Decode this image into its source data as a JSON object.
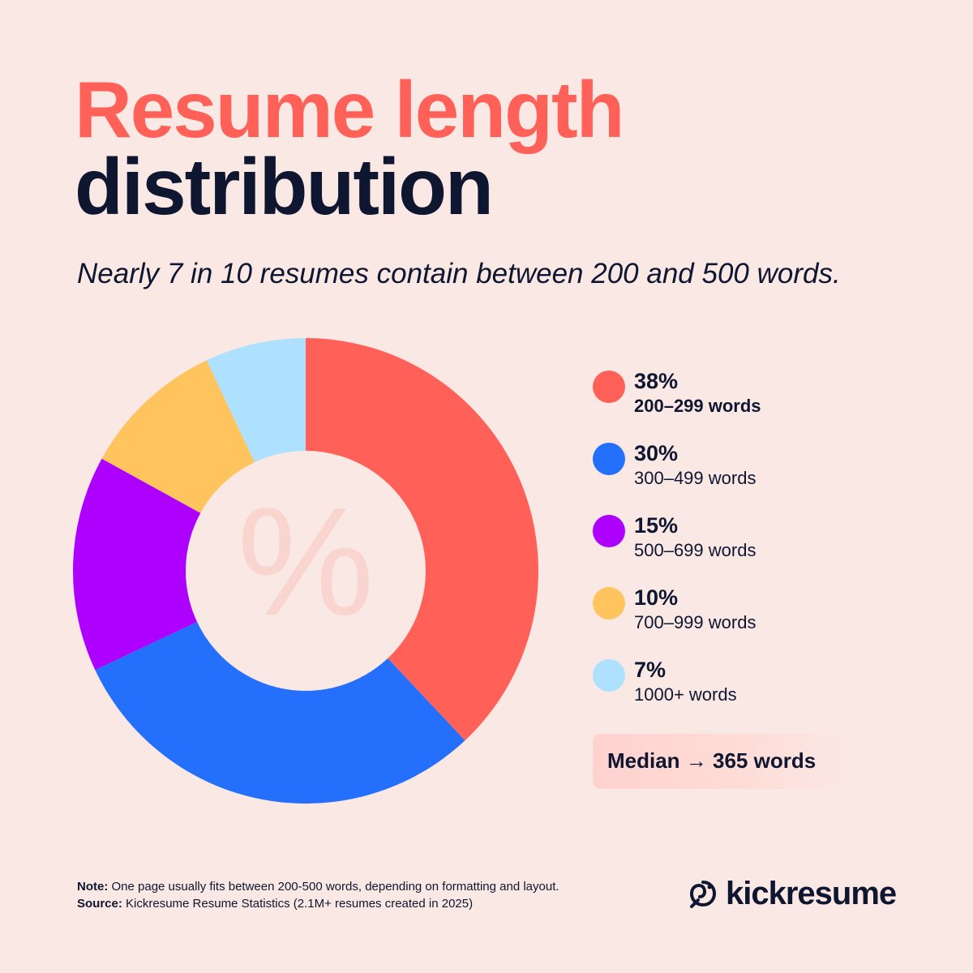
{
  "header": {
    "title_line1": "Resume length",
    "title_line2": "distribution",
    "subtitle": "Nearly 7 in 10 resumes contain between 200 and 500 words."
  },
  "chart_data": {
    "type": "pie",
    "donut": true,
    "center_symbol": "%",
    "categories": [
      "200–299 words",
      "300–499 words",
      "500–699 words",
      "700–999 words",
      "1000+ words"
    ],
    "values": [
      38,
      30,
      15,
      10,
      7
    ],
    "labels": [
      "38%",
      "30%",
      "15%",
      "10%",
      "7%"
    ],
    "colors": [
      "#FF6158",
      "#2470FC",
      "#AD00FF",
      "#FFC45D",
      "#AEE0FF"
    ],
    "legend_position": "right"
  },
  "legend": {
    "items": [
      {
        "pct": "38%",
        "range": "200–299 words",
        "color": "#FF6158"
      },
      {
        "pct": "30%",
        "range": "300–499 words",
        "color": "#2470FC"
      },
      {
        "pct": "15%",
        "range": "500–699 words",
        "color": "#AD00FF"
      },
      {
        "pct": "10%",
        "range": "700–999 words",
        "color": "#FFC45D"
      },
      {
        "pct": "7%",
        "range": "1000+ words",
        "color": "#AEE0FF"
      }
    ]
  },
  "median": {
    "label": "Median → 365 words"
  },
  "footer": {
    "note_label": "Note:",
    "note_text": " One page usually fits between 200-500 words, depending on formatting and layout.",
    "source_label": "Source:",
    "source_text": " Kickresume Resume Statistics (2.1M+ resumes created in 2025)"
  },
  "brand": {
    "name": "kickresume",
    "logo_icon": "kickresume-logo-icon"
  },
  "colors": {
    "background": "#FAE8E5",
    "accent": "#FF6158",
    "text": "#0E1630"
  }
}
